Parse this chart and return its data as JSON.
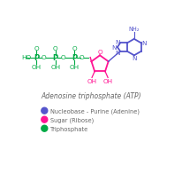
{
  "title": "Adenosine triphosphate (ATP)",
  "background": "#ffffff",
  "green": "#00aa44",
  "pink": "#ff1493",
  "blue": "#5555cc",
  "legend": [
    {
      "color": "#5555cc",
      "label": "Nucleobase - Purine (Adenine)"
    },
    {
      "color": "#ff1493",
      "label": "Sugar (Ribose)"
    },
    {
      "color": "#00aa44",
      "label": "Triphosphate"
    }
  ],
  "title_color": "#666666",
  "legend_text_color": "#666666"
}
